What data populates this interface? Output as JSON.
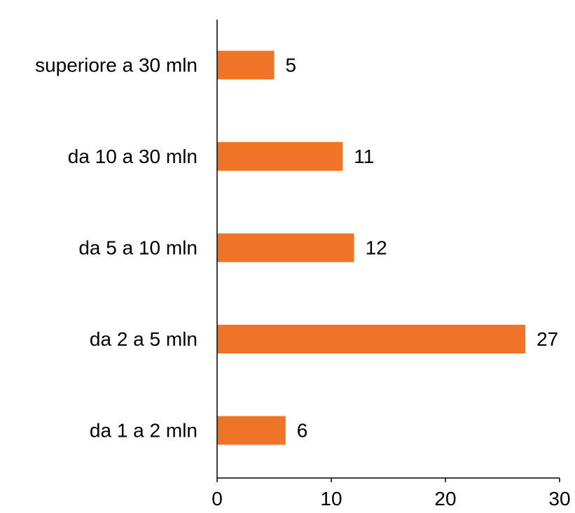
{
  "chart_data": {
    "type": "bar",
    "orientation": "horizontal",
    "categories": [
      "superiore a 30 mln",
      "da 10 a 30 mln",
      "da 5 a 10 mln",
      "da 2 a 5 mln",
      "da 1 a 2 mln"
    ],
    "values": [
      5,
      11,
      12,
      27,
      6
    ],
    "data_labels": [
      "5",
      "11",
      "12",
      "27",
      "6"
    ],
    "xlim": [
      0,
      30
    ],
    "x_ticks": [
      0,
      10,
      20,
      30
    ],
    "x_tick_labels": [
      "0",
      "10",
      "20",
      "30"
    ],
    "bar_color": "#F07428",
    "grid": false,
    "legend": "none"
  }
}
